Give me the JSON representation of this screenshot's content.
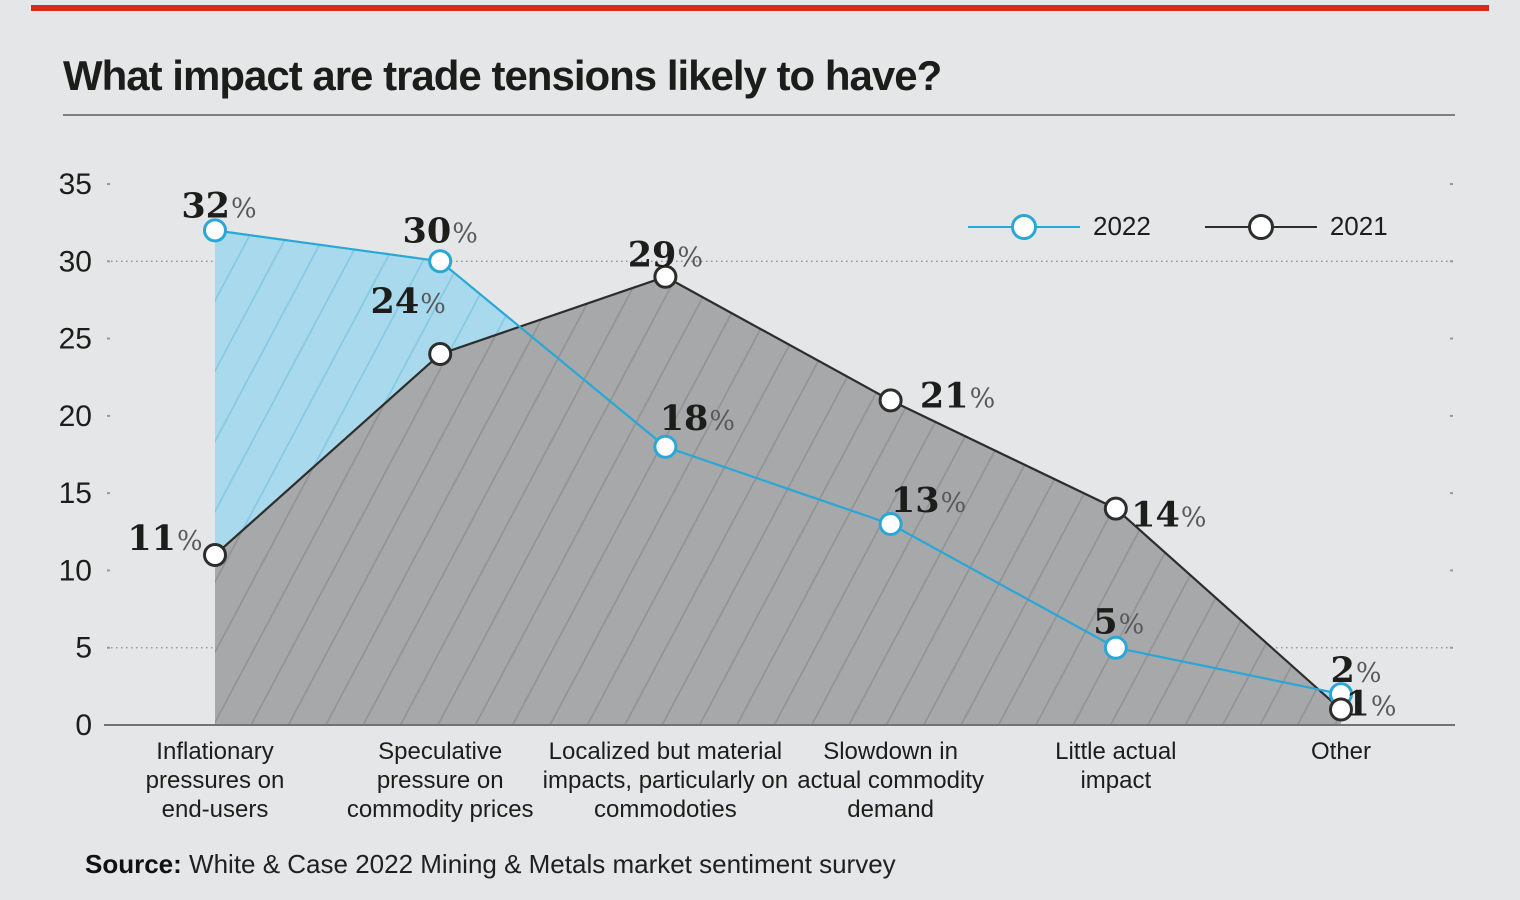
{
  "page": {
    "background": "#e5e6e7",
    "accent_bar_color": "#d8291c"
  },
  "header": {
    "title": "What impact are trade tensions likely to have?"
  },
  "legend": {
    "items": [
      {
        "label": "2022",
        "color": "#29a7d7"
      },
      {
        "label": "2021",
        "color": "#2d2d2c"
      }
    ]
  },
  "source": {
    "prefix": "Source:",
    "text": " White & Case 2022 Mining & Metals market sentiment survey"
  },
  "chart_data": {
    "type": "area",
    "title": "What impact are trade tensions likely to have?",
    "unit": "%",
    "categories": [
      "Inflationary\npressures on\nend-users",
      "Speculative\npressure on\ncommodity prices",
      "Localized but material\nimpacts, particularly on\ncommodoties",
      "Slowdown in\nactual commodity\ndemand",
      "Little actual\nimpact",
      "Other"
    ],
    "series": [
      {
        "name": "2022",
        "color": "#29a7d7",
        "fill": "#a9d9ec",
        "hatch": "#85c8e3",
        "values": [
          32,
          30,
          18,
          13,
          5,
          2
        ],
        "label_offsets": [
          [
            4,
            -13
          ],
          [
            0,
            -19
          ],
          [
            32,
            -17
          ],
          [
            38,
            -12
          ],
          [
            3,
            -14
          ],
          [
            15,
            -12
          ]
        ]
      },
      {
        "name": "2021",
        "color": "#2d2d2c",
        "fill": "#a6a8aa",
        "hatch": "#909294",
        "values": [
          11,
          24,
          29,
          21,
          14,
          1
        ],
        "label_offsets": [
          [
            -50,
            -5
          ],
          [
            -32,
            -41
          ],
          [
            0,
            -10
          ],
          [
            67,
            7
          ],
          [
            53,
            18
          ],
          [
            30,
            6
          ]
        ]
      }
    ],
    "ylim": [
      0,
      35
    ],
    "yticks": [
      0,
      5,
      10,
      15,
      20,
      25,
      30,
      35
    ],
    "grid_full_lines": [
      30,
      5
    ],
    "legend_position": "top-right",
    "label_value_color": "#1d1d1b",
    "label_unit_color": "#58595b",
    "grid_color": "#8c8e90",
    "axis_color": "#717375"
  }
}
